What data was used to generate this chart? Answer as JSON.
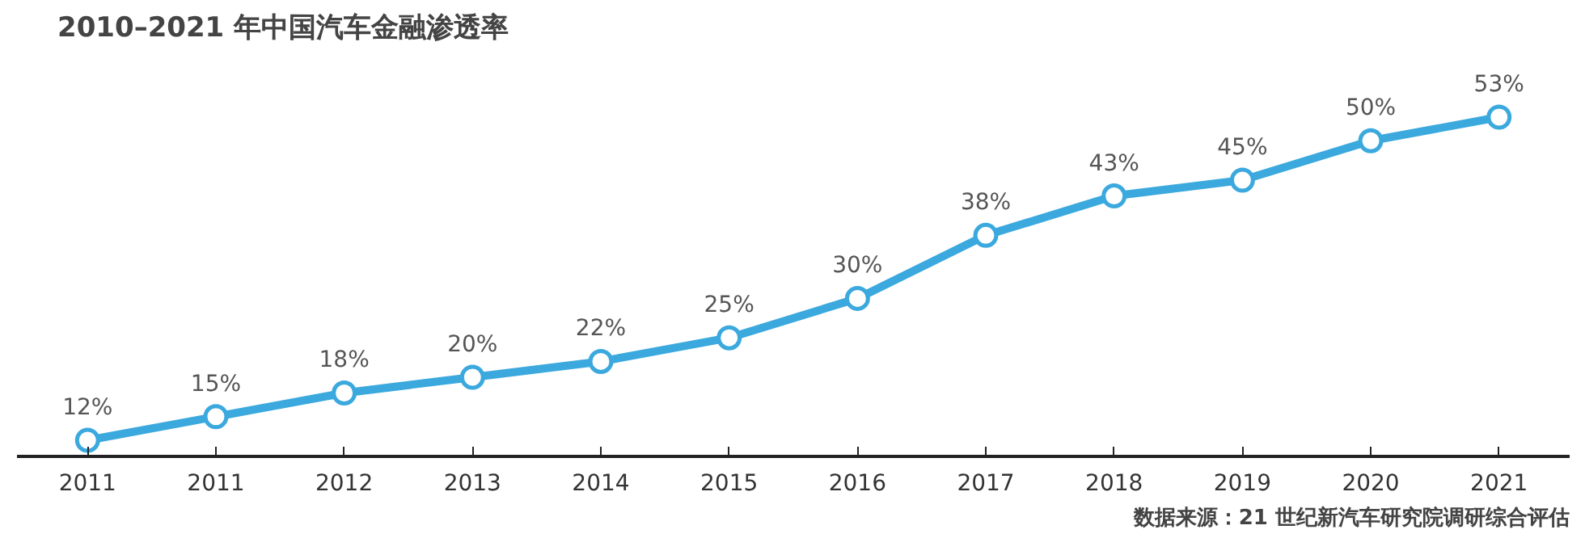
{
  "chart_data": {
    "type": "line",
    "title": "2010–2021 年中国汽车金融渗透率",
    "categories": [
      "2011",
      "2011",
      "2012",
      "2013",
      "2014",
      "2015",
      "2016",
      "2017",
      "2018",
      "2019",
      "2020",
      "2021"
    ],
    "values": [
      12,
      15,
      18,
      20,
      22,
      25,
      30,
      38,
      43,
      45,
      50,
      53
    ],
    "value_labels": [
      "12%",
      "15%",
      "18%",
      "20%",
      "22%",
      "25%",
      "30%",
      "38%",
      "43%",
      "45%",
      "50%",
      "53%"
    ],
    "color": "#3ba9de",
    "marker": "circle",
    "line_style": "solid",
    "annotations": [
      "数据来源：21 世纪新汽车研究院调研综合评估"
    ]
  }
}
